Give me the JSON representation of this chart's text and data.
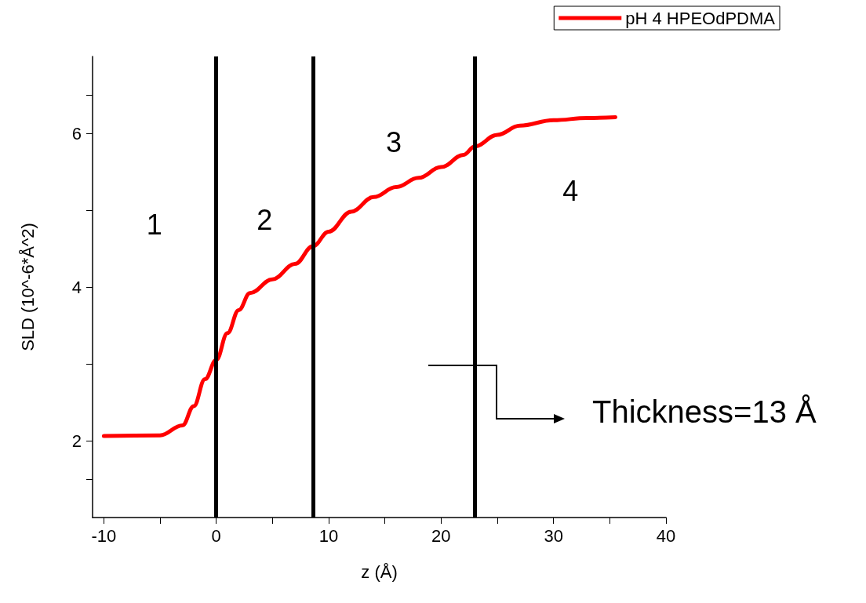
{
  "chart_data": {
    "type": "line",
    "xlabel": "z (Å)",
    "ylabel": "SLD (10^-6*Å^2)",
    "xlim": [
      -11,
      40
    ],
    "xticks": [
      -10,
      0,
      10,
      20,
      30,
      40
    ],
    "ylim": [
      1,
      7
    ],
    "yticks": [
      2,
      4,
      6
    ],
    "grid": false,
    "legend": "top right",
    "marker": "none",
    "line_style": "solid",
    "series": [
      {
        "name": "pH 4 HPEOdPDMA",
        "color": "#ff0000",
        "x": [
          -10,
          -5,
          -3,
          -2,
          -1,
          0,
          1,
          2,
          3,
          5,
          7,
          8.6,
          10,
          12,
          14,
          16,
          18,
          20,
          22,
          23,
          25,
          27,
          30,
          33,
          35.5
        ],
        "values": [
          2.06,
          2.07,
          2.2,
          2.45,
          2.8,
          3.05,
          3.4,
          3.7,
          3.92,
          4.1,
          4.3,
          4.53,
          4.72,
          4.98,
          5.17,
          5.3,
          5.42,
          5.56,
          5.72,
          5.83,
          5.98,
          6.1,
          6.17,
          6.2,
          6.21
        ]
      }
    ],
    "ref_lines": [
      {
        "axis": "x",
        "value": 0,
        "color": "#000000"
      },
      {
        "axis": "x",
        "value": 8.6,
        "color": "#000000"
      },
      {
        "axis": "x",
        "value": 23,
        "color": "#000000"
      }
    ],
    "annotations": [
      "1",
      "2",
      "3",
      "4",
      "Thickness=13 Å"
    ]
  }
}
